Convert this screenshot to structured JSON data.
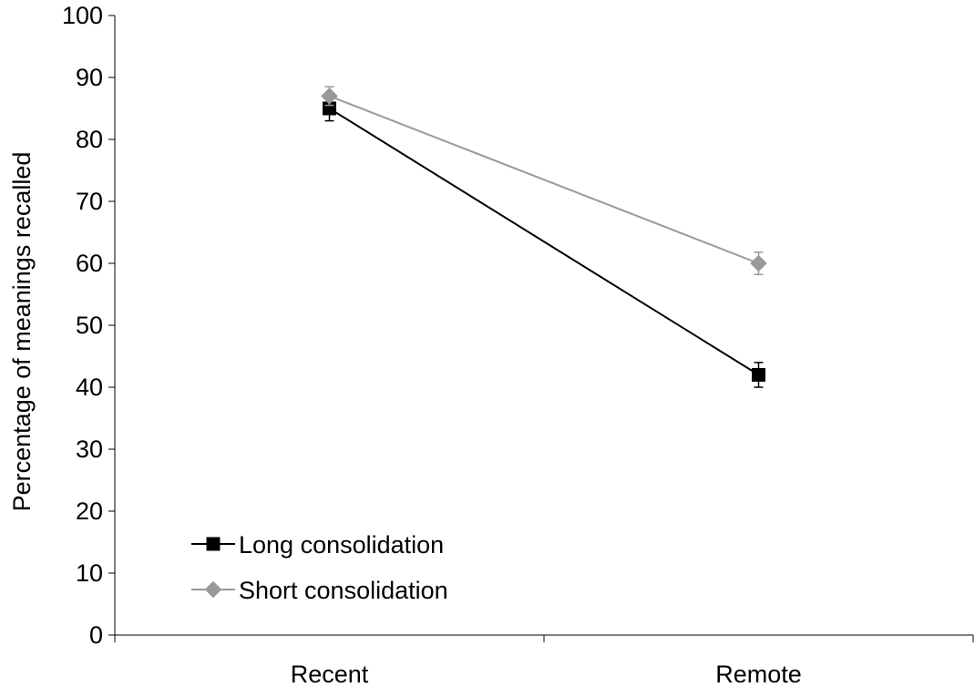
{
  "chart_data": {
    "type": "line",
    "categories": [
      "Recent",
      "Remote"
    ],
    "ylabel": "Percentage of meanings recalled",
    "xlabel": "",
    "ylim": [
      0,
      100
    ],
    "yticks": [
      "0",
      "10",
      "20",
      "30",
      "40",
      "50",
      "60",
      "70",
      "80",
      "90",
      "100"
    ],
    "grid": false,
    "legend_position": "bottom-left",
    "series": [
      {
        "name": "Long consolidation",
        "values": [
          85,
          42
        ],
        "errors": [
          2,
          2
        ],
        "color": "#000000",
        "marker": "square"
      },
      {
        "name": "Short consolidation",
        "values": [
          87,
          60
        ],
        "errors": [
          1.5,
          1.8
        ],
        "color": "#999999",
        "marker": "diamond"
      }
    ]
  }
}
